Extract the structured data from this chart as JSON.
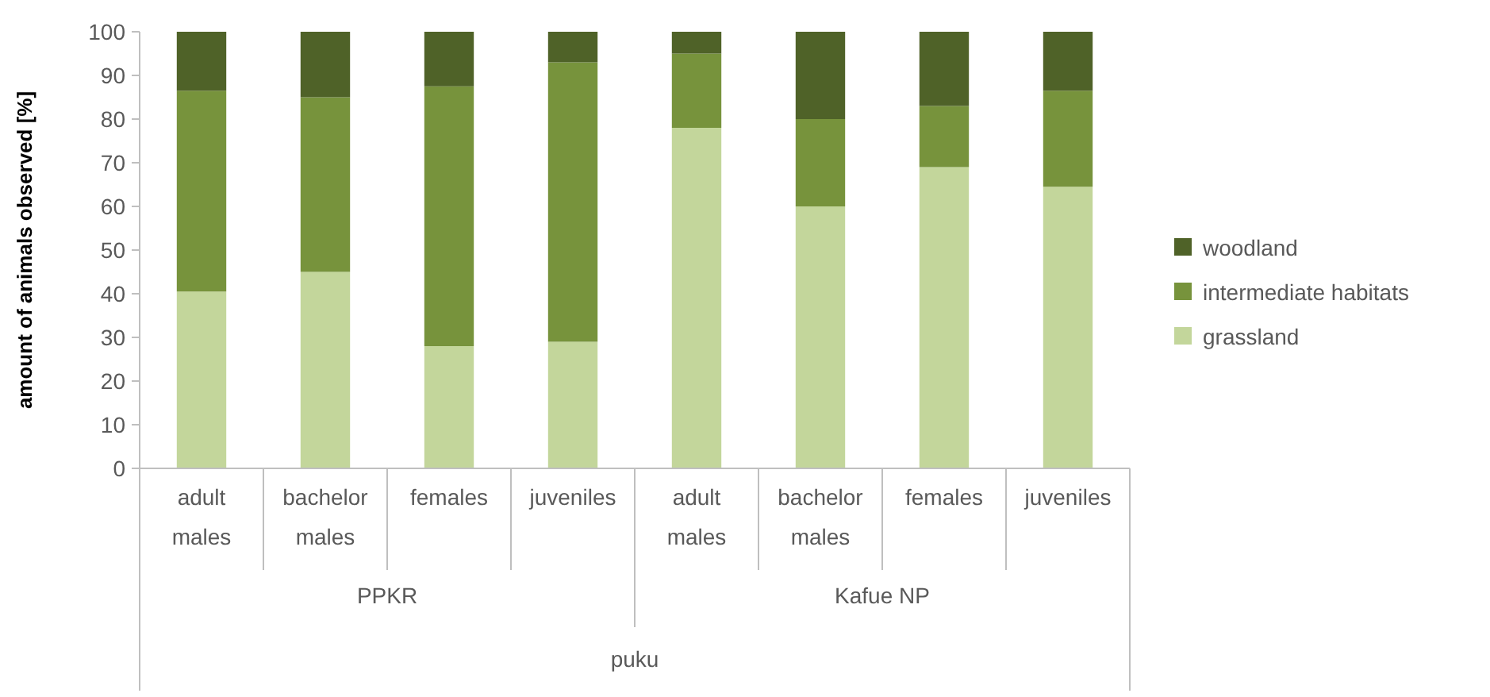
{
  "chart_data": {
    "type": "bar",
    "stacked": true,
    "ylabel": "amount of animals observed [%]",
    "categories": [
      "adult males",
      "bachelor males",
      "females",
      "juveniles",
      "adult males",
      "bachelor males",
      "females",
      "juveniles"
    ],
    "series": [
      {
        "name": "grassland",
        "color": "#c3d69b",
        "values": [
          40.5,
          45,
          28,
          29,
          78,
          60,
          69,
          64.5
        ]
      },
      {
        "name": "intermediate habitats",
        "color": "#77933c",
        "values": [
          46,
          40,
          59.5,
          64,
          17,
          20,
          14,
          22
        ]
      },
      {
        "name": "woodland",
        "color": "#4f6228",
        "values": [
          13.5,
          15,
          12.5,
          7,
          5,
          20,
          17,
          13.5
        ]
      }
    ],
    "ylim": [
      0,
      100
    ],
    "yticks": [
      0,
      10,
      20,
      30,
      40,
      50,
      60,
      70,
      80,
      90,
      100
    ],
    "legend": "right",
    "annotations": [
      "PPKR",
      "Kafue NP",
      "puku"
    ]
  }
}
